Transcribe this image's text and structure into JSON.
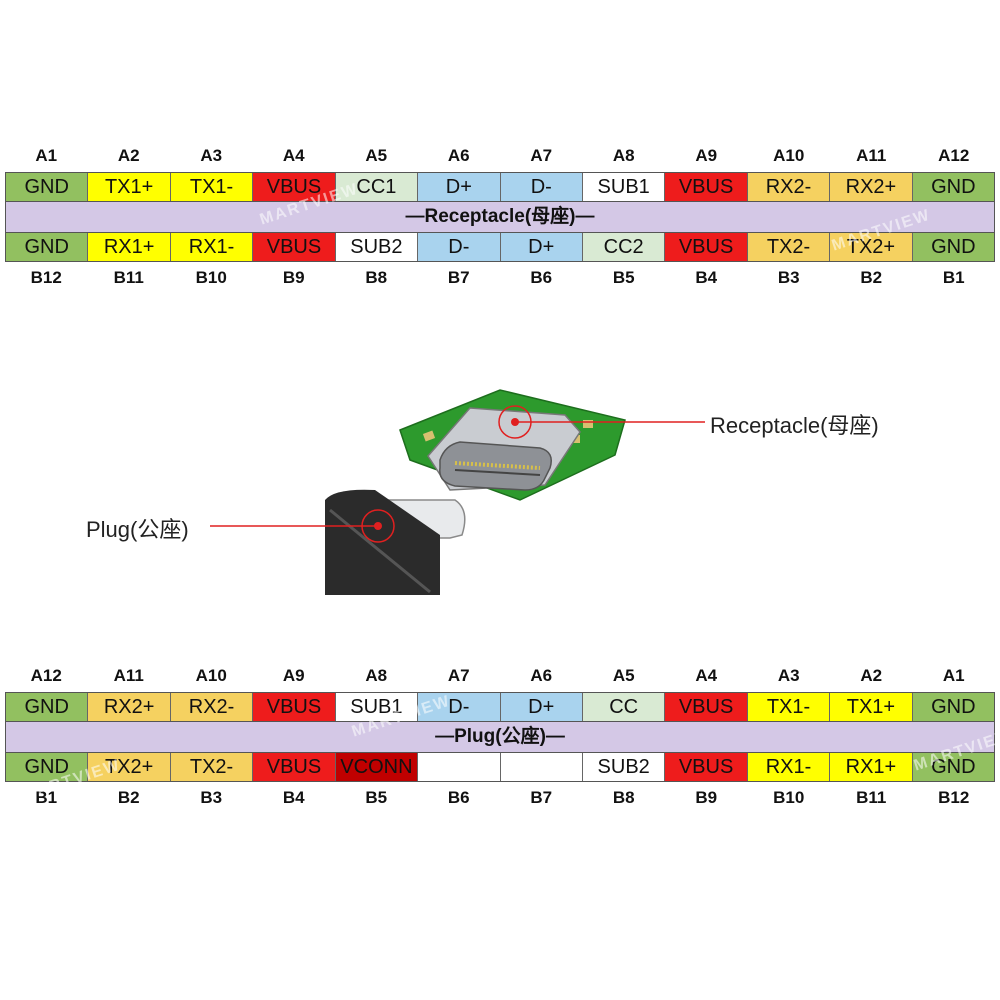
{
  "receptacle": {
    "top_labels": [
      "A1",
      "A2",
      "A3",
      "A4",
      "A5",
      "A6",
      "A7",
      "A8",
      "A9",
      "A10",
      "A11",
      "A12"
    ],
    "top_pins": [
      {
        "text": "GND",
        "color": "gnd"
      },
      {
        "text": "TX1+",
        "color": "yellow"
      },
      {
        "text": "TX1-",
        "color": "yellow"
      },
      {
        "text": "VBUS",
        "color": "red"
      },
      {
        "text": "CC1",
        "color": "lightgreen"
      },
      {
        "text": "D+",
        "color": "blue"
      },
      {
        "text": "D-",
        "color": "blue"
      },
      {
        "text": "SUB1",
        "color": "white"
      },
      {
        "text": "VBUS",
        "color": "red"
      },
      {
        "text": "RX2-",
        "color": "orange"
      },
      {
        "text": "RX2+",
        "color": "orange"
      },
      {
        "text": "GND",
        "color": "gnd"
      }
    ],
    "title": "—Receptacle(母座)—",
    "bottom_pins": [
      {
        "text": "GND",
        "color": "gnd"
      },
      {
        "text": "RX1+",
        "color": "yellow"
      },
      {
        "text": "RX1-",
        "color": "yellow"
      },
      {
        "text": "VBUS",
        "color": "red"
      },
      {
        "text": "SUB2",
        "color": "white"
      },
      {
        "text": "D-",
        "color": "blue"
      },
      {
        "text": "D+",
        "color": "blue"
      },
      {
        "text": "CC2",
        "color": "lightgreen"
      },
      {
        "text": "VBUS",
        "color": "red"
      },
      {
        "text": "TX2-",
        "color": "orange"
      },
      {
        "text": "TX2+",
        "color": "orange"
      },
      {
        "text": "GND",
        "color": "gnd"
      }
    ],
    "bottom_labels": [
      "B12",
      "B11",
      "B10",
      "B9",
      "B8",
      "B7",
      "B6",
      "B5",
      "B4",
      "B3",
      "B2",
      "B1"
    ]
  },
  "plug": {
    "top_labels": [
      "A12",
      "A11",
      "A10",
      "A9",
      "A8",
      "A7",
      "A6",
      "A5",
      "A4",
      "A3",
      "A2",
      "A1"
    ],
    "top_pins": [
      {
        "text": "GND",
        "color": "gnd"
      },
      {
        "text": "RX2+",
        "color": "orange"
      },
      {
        "text": "RX2-",
        "color": "orange"
      },
      {
        "text": "VBUS",
        "color": "red"
      },
      {
        "text": "SUB1",
        "color": "white"
      },
      {
        "text": "D-",
        "color": "blue"
      },
      {
        "text": "D+",
        "color": "blue"
      },
      {
        "text": "CC",
        "color": "lightgreen"
      },
      {
        "text": "VBUS",
        "color": "red"
      },
      {
        "text": "TX1-",
        "color": "yellow"
      },
      {
        "text": "TX1+",
        "color": "yellow"
      },
      {
        "text": "GND",
        "color": "gnd"
      }
    ],
    "title": "—Plug(公座)—",
    "bottom_pins": [
      {
        "text": "GND",
        "color": "gnd"
      },
      {
        "text": "TX2+",
        "color": "orange"
      },
      {
        "text": "TX2-",
        "color": "orange"
      },
      {
        "text": "VBUS",
        "color": "red"
      },
      {
        "text": "VCONN",
        "color": "darkred"
      },
      {
        "text": "",
        "color": "white"
      },
      {
        "text": "",
        "color": "white"
      },
      {
        "text": "SUB2",
        "color": "white"
      },
      {
        "text": "VBUS",
        "color": "red"
      },
      {
        "text": "RX1-",
        "color": "yellow"
      },
      {
        "text": "RX1+",
        "color": "yellow"
      },
      {
        "text": "GND",
        "color": "gnd"
      }
    ],
    "bottom_labels": [
      "B1",
      "B2",
      "B3",
      "B4",
      "B5",
      "B6",
      "B7",
      "B8",
      "B9",
      "B10",
      "B11",
      "B12"
    ]
  },
  "callouts": {
    "receptacle_label": "Receptacle(母座)",
    "plug_label": "Plug(公座)"
  },
  "watermark": "MARTVIEW",
  "colors": {
    "gnd": "#92c060",
    "yellow": "#ffff00",
    "red": "#ee1c1c",
    "darkred": "#c00000",
    "lightgreen": "#d9ead3",
    "blue": "#a9d3ee",
    "white": "#ffffff",
    "orange": "#f5d160",
    "banner": "#d4c8e6",
    "pcb": "#2d9a2d",
    "callout": "#e02020"
  }
}
